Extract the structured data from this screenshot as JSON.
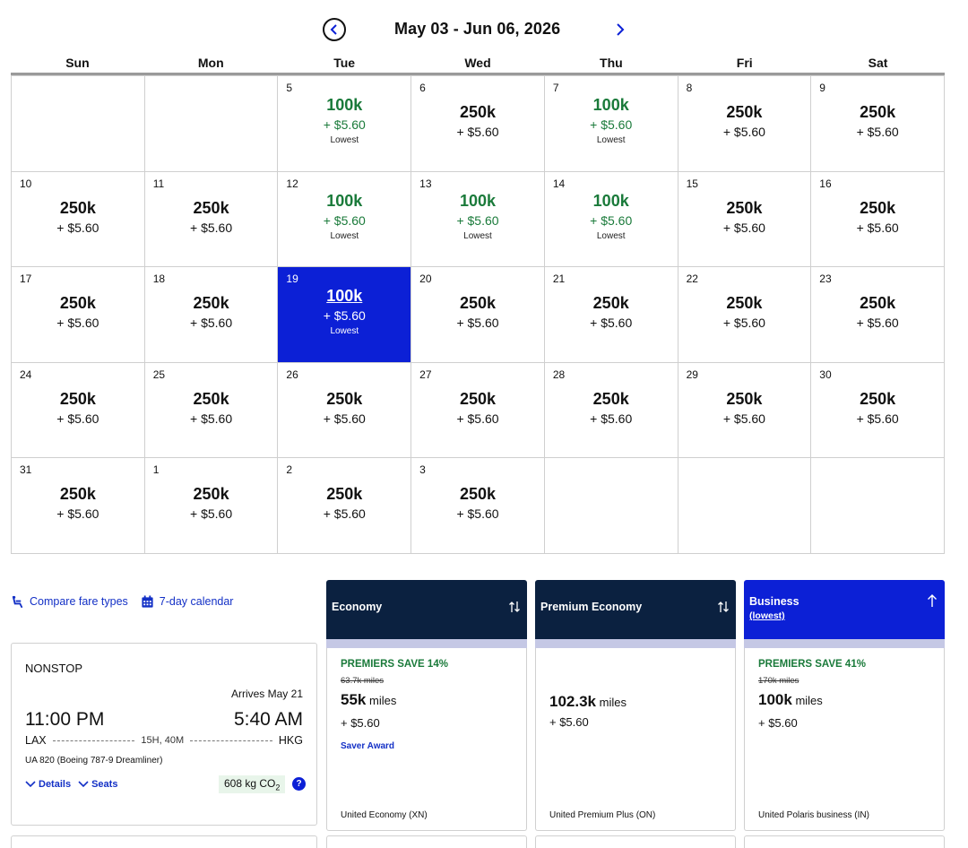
{
  "header": {
    "date_range": "May 03 - Jun 06, 2026"
  },
  "weekdays": [
    "Sun",
    "Mon",
    "Tue",
    "Wed",
    "Thu",
    "Fri",
    "Sat"
  ],
  "calendar": {
    "lowest_label": "Lowest",
    "cells": [
      {
        "day": "",
        "miles": "",
        "tax": "",
        "status": "empty"
      },
      {
        "day": "",
        "miles": "",
        "tax": "",
        "status": "empty"
      },
      {
        "day": "5",
        "miles": "100k",
        "tax": "+ $5.60",
        "status": "lowest"
      },
      {
        "day": "6",
        "miles": "250k",
        "tax": "+ $5.60",
        "status": "normal"
      },
      {
        "day": "7",
        "miles": "100k",
        "tax": "+ $5.60",
        "status": "lowest"
      },
      {
        "day": "8",
        "miles": "250k",
        "tax": "+ $5.60",
        "status": "normal"
      },
      {
        "day": "9",
        "miles": "250k",
        "tax": "+ $5.60",
        "status": "normal"
      },
      {
        "day": "10",
        "miles": "250k",
        "tax": "+ $5.60",
        "status": "normal"
      },
      {
        "day": "11",
        "miles": "250k",
        "tax": "+ $5.60",
        "status": "normal"
      },
      {
        "day": "12",
        "miles": "100k",
        "tax": "+ $5.60",
        "status": "lowest"
      },
      {
        "day": "13",
        "miles": "100k",
        "tax": "+ $5.60",
        "status": "lowest"
      },
      {
        "day": "14",
        "miles": "100k",
        "tax": "+ $5.60",
        "status": "lowest"
      },
      {
        "day": "15",
        "miles": "250k",
        "tax": "+ $5.60",
        "status": "normal"
      },
      {
        "day": "16",
        "miles": "250k",
        "tax": "+ $5.60",
        "status": "normal"
      },
      {
        "day": "17",
        "miles": "250k",
        "tax": "+ $5.60",
        "status": "normal"
      },
      {
        "day": "18",
        "miles": "250k",
        "tax": "+ $5.60",
        "status": "normal"
      },
      {
        "day": "19",
        "miles": "100k",
        "tax": "+ $5.60",
        "status": "selected"
      },
      {
        "day": "20",
        "miles": "250k",
        "tax": "+ $5.60",
        "status": "normal"
      },
      {
        "day": "21",
        "miles": "250k",
        "tax": "+ $5.60",
        "status": "normal"
      },
      {
        "day": "22",
        "miles": "250k",
        "tax": "+ $5.60",
        "status": "normal"
      },
      {
        "day": "23",
        "miles": "250k",
        "tax": "+ $5.60",
        "status": "normal"
      },
      {
        "day": "24",
        "miles": "250k",
        "tax": "+ $5.60",
        "status": "normal"
      },
      {
        "day": "25",
        "miles": "250k",
        "tax": "+ $5.60",
        "status": "normal"
      },
      {
        "day": "26",
        "miles": "250k",
        "tax": "+ $5.60",
        "status": "normal"
      },
      {
        "day": "27",
        "miles": "250k",
        "tax": "+ $5.60",
        "status": "normal"
      },
      {
        "day": "28",
        "miles": "250k",
        "tax": "+ $5.60",
        "status": "normal"
      },
      {
        "day": "29",
        "miles": "250k",
        "tax": "+ $5.60",
        "status": "normal"
      },
      {
        "day": "30",
        "miles": "250k",
        "tax": "+ $5.60",
        "status": "normal"
      },
      {
        "day": "31",
        "miles": "250k",
        "tax": "+ $5.60",
        "status": "normal"
      },
      {
        "day": "1",
        "miles": "250k",
        "tax": "+ $5.60",
        "status": "normal"
      },
      {
        "day": "2",
        "miles": "250k",
        "tax": "+ $5.60",
        "status": "normal"
      },
      {
        "day": "3",
        "miles": "250k",
        "tax": "+ $5.60",
        "status": "normal"
      },
      {
        "day": "",
        "miles": "",
        "tax": "",
        "status": "empty"
      },
      {
        "day": "",
        "miles": "",
        "tax": "",
        "status": "empty"
      },
      {
        "day": "",
        "miles": "",
        "tax": "",
        "status": "empty"
      }
    ]
  },
  "links": {
    "compare_fare_types": "Compare fare types",
    "seven_day_calendar": "7-day calendar"
  },
  "flight": {
    "stops": "NONSTOP",
    "arrives": "Arrives May 21",
    "depart_time": "11:00 PM",
    "arrive_time": "5:40 AM",
    "origin": "LAX",
    "destination": "HKG",
    "duration": "15H, 40M",
    "flight_info": "UA 820 (Boeing 787-9 Dreamliner)",
    "details_label": "Details",
    "seats_label": "Seats",
    "co2_value": "608 kg CO",
    "co2_sub": "2",
    "help_label": "?"
  },
  "fares": {
    "economy": {
      "header": "Economy",
      "save": "PREMIERS SAVE 14%",
      "original": "63.7k miles",
      "miles": "55k",
      "miles_unit": " miles",
      "tax": "+ $5.60",
      "award": "Saver Award",
      "cabin": "United Economy (XN)"
    },
    "premium": {
      "header": "Premium Economy",
      "miles": "102.3k",
      "miles_unit": " miles",
      "tax": "+ $5.60",
      "cabin": "United Premium Plus (ON)"
    },
    "business": {
      "header": "Business",
      "sub": "(lowest)",
      "save": "PREMIERS SAVE 41%",
      "original": "170k miles",
      "miles": "100k",
      "miles_unit": " miles",
      "tax": "+ $5.60",
      "cabin": "United Polaris business (IN)"
    }
  },
  "colors": {
    "selected": "#0c20d6",
    "lowest_green": "#1a7a3a",
    "navy_header": "#0b2140",
    "link_blue": "#1330c6"
  }
}
